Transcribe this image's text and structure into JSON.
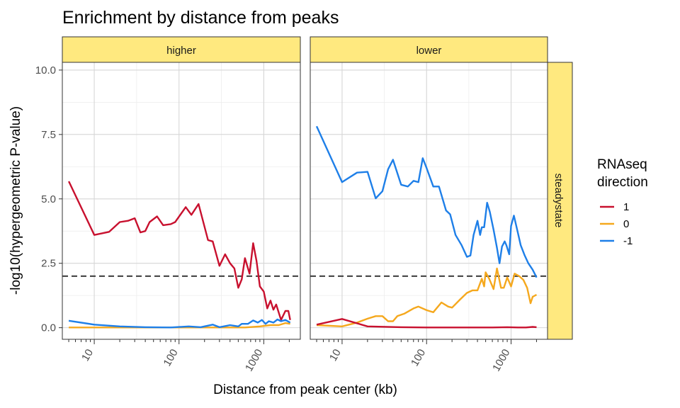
{
  "chart_data": {
    "type": "line",
    "title": "Enrichment by distance from peaks",
    "xlabel": "Distance from peak center (kb)",
    "ylabel": "-log10(hypergeometric P-value)",
    "x_scale": "log10",
    "xlim": [
      4.2,
      2700
    ],
    "ylim": [
      -0.45,
      10.3
    ],
    "x_ticks": [
      10,
      100,
      1000
    ],
    "x_tick_labels": [
      "10",
      "100",
      "1000"
    ],
    "y_ticks": [
      0,
      2.5,
      5,
      7.5,
      10
    ],
    "y_tick_labels": [
      "0.0",
      "2.5",
      "5.0",
      "7.5",
      "10.0"
    ],
    "threshold": 2,
    "row_strip": "steadystate",
    "grid": true,
    "legend": {
      "title_lines": [
        "RNAseq",
        "direction"
      ],
      "position": "right",
      "entries": [
        {
          "label": "1",
          "color": "#c8102e"
        },
        {
          "label": "0",
          "color": "#f5a81d"
        },
        {
          "label": "-1",
          "color": "#1e7fe8"
        }
      ]
    },
    "panels": [
      {
        "label": "higher",
        "series": [
          {
            "key": "1",
            "color": "#c8102e",
            "points": [
              [
                5,
                5.68
              ],
              [
                10,
                3.6
              ],
              [
                15,
                3.72
              ],
              [
                20,
                4.1
              ],
              [
                25,
                4.15
              ],
              [
                30,
                4.25
              ],
              [
                35,
                3.7
              ],
              [
                40,
                3.75
              ],
              [
                45,
                4.1
              ],
              [
                55,
                4.32
              ],
              [
                65,
                3.98
              ],
              [
                80,
                4.02
              ],
              [
                90,
                4.1
              ],
              [
                120,
                4.68
              ],
              [
                140,
                4.38
              ],
              [
                170,
                4.8
              ],
              [
                220,
                3.4
              ],
              [
                250,
                3.35
              ],
              [
                300,
                2.4
              ],
              [
                350,
                2.85
              ],
              [
                400,
                2.5
              ],
              [
                450,
                2.3
              ],
              [
                500,
                1.55
              ],
              [
                550,
                1.88
              ],
              [
                600,
                2.7
              ],
              [
                680,
                2.1
              ],
              [
                750,
                3.28
              ],
              [
                820,
                2.6
              ],
              [
                900,
                1.6
              ],
              [
                1000,
                1.4
              ],
              [
                1100,
                0.75
              ],
              [
                1200,
                1.05
              ],
              [
                1300,
                0.7
              ],
              [
                1400,
                0.9
              ],
              [
                1600,
                0.3
              ],
              [
                1800,
                0.65
              ],
              [
                1950,
                0.65
              ],
              [
                2050,
                0.3
              ]
            ]
          },
          {
            "key": "0",
            "color": "#f5a81d",
            "points": [
              [
                5,
                0.01
              ],
              [
                10,
                0.01
              ],
              [
                50,
                0.01
              ],
              [
                100,
                0.01
              ],
              [
                300,
                0.01
              ],
              [
                600,
                0.01
              ],
              [
                900,
                0.05
              ],
              [
                1200,
                0.1
              ],
              [
                1500,
                0.1
              ],
              [
                1800,
                0.18
              ],
              [
                2050,
                0.15
              ]
            ]
          },
          {
            "key": "-1",
            "color": "#1e7fe8",
            "points": [
              [
                5,
                0.27
              ],
              [
                10,
                0.12
              ],
              [
                20,
                0.05
              ],
              [
                40,
                0.02
              ],
              [
                80,
                0.01
              ],
              [
                130,
                0.05
              ],
              [
                180,
                0.02
              ],
              [
                250,
                0.12
              ],
              [
                300,
                0.02
              ],
              [
                400,
                0.1
              ],
              [
                500,
                0.05
              ],
              [
                550,
                0.15
              ],
              [
                650,
                0.15
              ],
              [
                750,
                0.28
              ],
              [
                850,
                0.2
              ],
              [
                950,
                0.3
              ],
              [
                1050,
                0.15
              ],
              [
                1150,
                0.25
              ],
              [
                1300,
                0.2
              ],
              [
                1450,
                0.32
              ],
              [
                1600,
                0.25
              ],
              [
                1800,
                0.3
              ],
              [
                2050,
                0.2
              ]
            ]
          }
        ]
      },
      {
        "label": "lower",
        "series": [
          {
            "key": "-1",
            "color": "#1e7fe8",
            "points": [
              [
                5,
                7.82
              ],
              [
                10,
                5.65
              ],
              [
                15,
                6.02
              ],
              [
                20,
                6.05
              ],
              [
                25,
                5.02
              ],
              [
                30,
                5.3
              ],
              [
                35,
                6.15
              ],
              [
                40,
                6.52
              ],
              [
                50,
                5.55
              ],
              [
                60,
                5.48
              ],
              [
                70,
                5.7
              ],
              [
                80,
                5.65
              ],
              [
                90,
                6.58
              ],
              [
                100,
                6.2
              ],
              [
                120,
                5.48
              ],
              [
                140,
                5.48
              ],
              [
                170,
                4.55
              ],
              [
                190,
                4.4
              ],
              [
                220,
                3.6
              ],
              [
                260,
                3.2
              ],
              [
                300,
                2.75
              ],
              [
                330,
                2.8
              ],
              [
                360,
                3.6
              ],
              [
                400,
                4.15
              ],
              [
                430,
                3.6
              ],
              [
                450,
                3.9
              ],
              [
                480,
                3.9
              ],
              [
                520,
                4.85
              ],
              [
                560,
                4.5
              ],
              [
                620,
                3.8
              ],
              [
                680,
                3.1
              ],
              [
                730,
                2.5
              ],
              [
                780,
                3.15
              ],
              [
                840,
                3.35
              ],
              [
                880,
                3.2
              ],
              [
                950,
                2.85
              ],
              [
                1000,
                3.95
              ],
              [
                1080,
                4.35
              ],
              [
                1200,
                3.7
              ],
              [
                1300,
                3.2
              ],
              [
                1450,
                2.8
              ],
              [
                1600,
                2.5
              ],
              [
                1800,
                2.25
              ],
              [
                2000,
                1.95
              ]
            ]
          },
          {
            "key": "0",
            "color": "#f5a81d",
            "points": [
              [
                5,
                0.1
              ],
              [
                10,
                0.05
              ],
              [
                15,
                0.2
              ],
              [
                20,
                0.35
              ],
              [
                25,
                0.45
              ],
              [
                30,
                0.45
              ],
              [
                35,
                0.25
              ],
              [
                40,
                0.25
              ],
              [
                45,
                0.45
              ],
              [
                55,
                0.55
              ],
              [
                70,
                0.75
              ],
              [
                80,
                0.82
              ],
              [
                100,
                0.68
              ],
              [
                120,
                0.6
              ],
              [
                150,
                0.98
              ],
              [
                180,
                0.82
              ],
              [
                200,
                0.78
              ],
              [
                250,
                1.1
              ],
              [
                300,
                1.35
              ],
              [
                350,
                1.45
              ],
              [
                400,
                1.45
              ],
              [
                450,
                1.9
              ],
              [
                480,
                1.6
              ],
              [
                500,
                2.15
              ],
              [
                550,
                1.9
              ],
              [
                620,
                1.5
              ],
              [
                680,
                2.3
              ],
              [
                760,
                1.55
              ],
              [
                820,
                1.55
              ],
              [
                900,
                1.95
              ],
              [
                1000,
                1.6
              ],
              [
                1100,
                2.1
              ],
              [
                1250,
                2.0
              ],
              [
                1400,
                1.85
              ],
              [
                1550,
                1.55
              ],
              [
                1700,
                0.95
              ],
              [
                1800,
                1.2
              ],
              [
                2000,
                1.28
              ]
            ]
          },
          {
            "key": "1",
            "color": "#c8102e",
            "points": [
              [
                5,
                0.12
              ],
              [
                10,
                0.34
              ],
              [
                20,
                0.05
              ],
              [
                50,
                0.02
              ],
              [
                100,
                0.01
              ],
              [
                300,
                0.01
              ],
              [
                600,
                0.01
              ],
              [
                900,
                0.02
              ],
              [
                1200,
                0.01
              ],
              [
                1500,
                0.01
              ],
              [
                1800,
                0.03
              ],
              [
                2000,
                0.02
              ]
            ]
          }
        ]
      }
    ]
  }
}
